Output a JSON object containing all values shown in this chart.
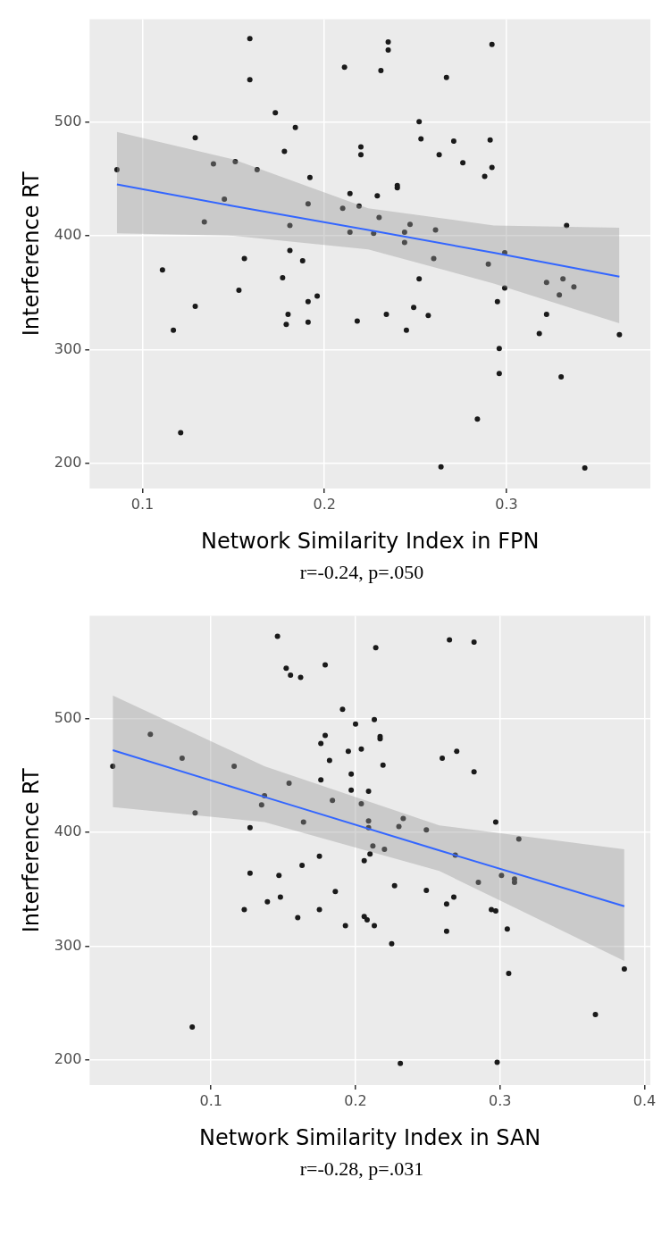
{
  "chart_data": [
    {
      "type": "scatter",
      "xlabel": "Network Similarity Index in FPN",
      "ylabel": "Interference RT",
      "annotations": [
        "r=-0.24, p=.050"
      ],
      "xlim": [
        0.071,
        0.379
      ],
      "xticks": [
        0.1,
        0.2,
        0.3
      ],
      "ylim": [
        178,
        590
      ],
      "yticks": [
        200,
        300,
        400,
        500
      ],
      "grid": true,
      "series": [
        {
          "marker": "circle",
          "color": "#1a1a1a",
          "x": [
            0.159,
            0.159,
            0.211,
            0.173,
            0.184,
            0.129,
            0.178,
            0.22,
            0.22,
            0.086,
            0.139,
            0.151,
            0.163,
            0.192,
            0.214,
            0.229,
            0.145,
            0.191,
            0.21,
            0.219,
            0.134,
            0.181,
            0.214,
            0.227,
            0.111,
            0.156,
            0.181,
            0.188,
            0.177,
            0.153,
            0.129,
            0.196,
            0.191,
            0.18,
            0.179,
            0.191,
            0.218,
            0.117,
            0.121,
            0.235,
            0.235,
            0.231,
            0.292,
            0.267,
            0.252,
            0.253,
            0.271,
            0.291,
            0.263,
            0.276,
            0.292,
            0.288,
            0.24,
            0.24,
            0.23,
            0.247,
            0.261,
            0.244,
            0.244,
            0.26,
            0.333,
            0.299,
            0.29,
            0.252,
            0.299,
            0.322,
            0.331,
            0.337,
            0.329,
            0.295,
            0.234,
            0.249,
            0.257,
            0.245,
            0.322,
            0.318,
            0.362,
            0.296,
            0.296,
            0.33,
            0.284,
            0.264,
            0.343
          ],
          "values": [
            573,
            537,
            548,
            508,
            495,
            486,
            474,
            478,
            471,
            458,
            463,
            465,
            458,
            451,
            437,
            435,
            432,
            428,
            424,
            426,
            412,
            409,
            403,
            402,
            370,
            380,
            387,
            378,
            363,
            352,
            338,
            347,
            342,
            331,
            322,
            324,
            325,
            317,
            227,
            570,
            563,
            545,
            568,
            539,
            500,
            485,
            483,
            484,
            471,
            464,
            460,
            452,
            444,
            442,
            416,
            410,
            405,
            403,
            394,
            380,
            409,
            385,
            375,
            362,
            354,
            359,
            362,
            355,
            348,
            342,
            331,
            337,
            330,
            317,
            331,
            314,
            313,
            301,
            279,
            276,
            239,
            197,
            196
          ]
        },
        {
          "type": "line",
          "color": "#3366ff",
          "x": [
            0.086,
            0.15,
            0.224,
            0.293,
            0.362
          ],
          "values": [
            445,
            426,
            405,
            385,
            364
          ],
          "lower": [
            402,
            400,
            388,
            358,
            323
          ],
          "upper": [
            491,
            467,
            424,
            409,
            407
          ]
        }
      ]
    },
    {
      "type": "scatter",
      "xlabel": "Network Similarity Index in SAN",
      "ylabel": "Interference RT",
      "annotations": [
        "r=-0.28, p=.031"
      ],
      "xlim": [
        0.016,
        0.404
      ],
      "xticks": [
        0.1,
        0.2,
        0.3,
        0.4
      ],
      "ylim": [
        178,
        590
      ],
      "yticks": [
        200,
        300,
        400,
        500
      ],
      "grid": true,
      "series": [
        {
          "marker": "circle",
          "color": "#1a1a1a",
          "x": [
            0.146,
            0.179,
            0.152,
            0.155,
            0.162,
            0.214,
            0.191,
            0.213,
            0.2,
            0.217,
            0.217,
            0.179,
            0.176,
            0.058,
            0.204,
            0.195,
            0.182,
            0.219,
            0.08,
            0.032,
            0.116,
            0.197,
            0.176,
            0.154,
            0.197,
            0.209,
            0.204,
            0.184,
            0.137,
            0.135,
            0.089,
            0.164,
            0.209,
            0.209,
            0.212,
            0.21,
            0.206,
            0.127,
            0.127,
            0.147,
            0.163,
            0.175,
            0.186,
            0.139,
            0.148,
            0.123,
            0.16,
            0.175,
            0.193,
            0.206,
            0.208,
            0.213,
            0.087,
            0.265,
            0.282,
            0.27,
            0.26,
            0.282,
            0.233,
            0.23,
            0.249,
            0.297,
            0.313,
            0.269,
            0.301,
            0.31,
            0.31,
            0.285,
            0.22,
            0.227,
            0.249,
            0.268,
            0.263,
            0.294,
            0.297,
            0.305,
            0.263,
            0.225,
            0.306,
            0.386,
            0.366,
            0.231,
            0.298
          ],
          "values": [
            572,
            547,
            544,
            538,
            536,
            562,
            508,
            499,
            495,
            484,
            482,
            485,
            478,
            486,
            473,
            471,
            463,
            459,
            465,
            458,
            458,
            451,
            446,
            443,
            437,
            436,
            425,
            428,
            432,
            424,
            417,
            409,
            410,
            404,
            388,
            381,
            375,
            404,
            364,
            362,
            371,
            379,
            348,
            339,
            343,
            332,
            325,
            332,
            318,
            326,
            323,
            318,
            229,
            569,
            567,
            471,
            465,
            453,
            412,
            405,
            402,
            409,
            394,
            380,
            362,
            359,
            356,
            356,
            385,
            353,
            349,
            343,
            337,
            332,
            331,
            315,
            313,
            302,
            276,
            280,
            240,
            197,
            198
          ]
        },
        {
          "type": "line",
          "color": "#3366ff",
          "x": [
            0.032,
            0.137,
            0.258,
            0.386
          ],
          "values": [
            472,
            431,
            384,
            335
          ],
          "lower": [
            422,
            409,
            366,
            287
          ],
          "upper": [
            520,
            458,
            406,
            385
          ]
        }
      ]
    }
  ]
}
